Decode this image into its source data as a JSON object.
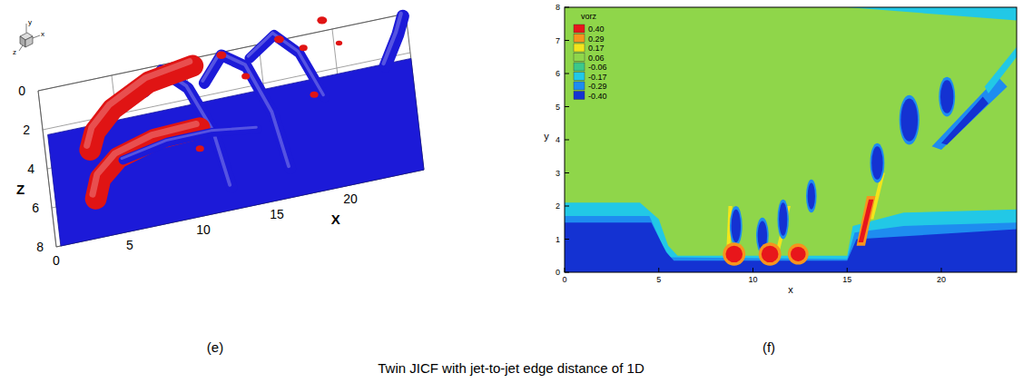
{
  "figure_caption": "Twin JICF with jet-to-jet edge distance of 1D",
  "chart_data": [
    {
      "type": "isosurface",
      "caption": "(e)",
      "x_label": "X",
      "z_label": "Z",
      "axis_icon": [
        "y",
        "x",
        "z"
      ],
      "xlim": [
        0,
        25
      ],
      "zlim": [
        0,
        8
      ],
      "xticks": [
        0,
        5,
        10,
        15,
        20
      ],
      "zticks": [
        0,
        2,
        4,
        6,
        8
      ],
      "surface": {
        "color": "#1c1ad8",
        "points": [
          [
            0.3,
            2.3,
            0
          ],
          [
            25,
            2.3,
            0
          ],
          [
            25,
            8,
            0
          ],
          [
            0.3,
            8,
            0
          ]
        ]
      },
      "tubes": [
        {
          "color": "#1c1ad8",
          "radius": 0.45,
          "points": [
            [
              7,
              1.5,
              0.5
            ],
            [
              8,
              2.5,
              3.5
            ],
            [
              9.5,
              4.5,
              4.8
            ],
            [
              11,
              6.5,
              4
            ],
            [
              12,
              7.5,
              1
            ]
          ]
        },
        {
          "color": "#1c1ad8",
          "radius": 0.45,
          "points": [
            [
              11,
              2,
              1
            ],
            [
              12,
              3,
              4.5
            ],
            [
              13.5,
              4.5,
              5.5
            ],
            [
              15,
              6.5,
              4.5
            ],
            [
              16,
              7.5,
              1.5
            ]
          ]
        },
        {
          "color": "#1c1ad8",
          "radius": 0.4,
          "points": [
            [
              14,
              2.5,
              3
            ],
            [
              15.5,
              3.5,
              6
            ],
            [
              17,
              5,
              6.5
            ],
            [
              18.5,
              6.5,
              5
            ]
          ]
        },
        {
          "color": "#e01414",
          "radius": 0.85,
          "points": [
            [
              3,
              3.5,
              0
            ],
            [
              3.3,
              3.6,
              1.5
            ],
            [
              4.5,
              3.6,
              3
            ],
            [
              7,
              3.4,
              4.2
            ],
            [
              10,
              3.3,
              4.6
            ]
          ]
        },
        {
          "color": "#e01414",
          "radius": 0.85,
          "points": [
            [
              3,
              6,
              0
            ],
            [
              3.3,
              6,
              1.5
            ],
            [
              4.5,
              6.1,
              3
            ],
            [
              7,
              6.2,
              4
            ],
            [
              10,
              6.3,
              4.3
            ]
          ]
        },
        {
          "color": "#1c1ad8",
          "radius": 0.35,
          "points": [
            [
              5,
              5,
              1
            ],
            [
              8,
              5.2,
              2
            ],
            [
              11,
              5.5,
              2.5
            ],
            [
              14,
              6,
              2.8
            ]
          ]
        },
        {
          "color": "#1c1ad8",
          "radius": 0.5,
          "points": [
            [
              23,
              4,
              2.5
            ],
            [
              24,
              3,
              3.2
            ],
            [
              24.5,
              2,
              3
            ]
          ]
        }
      ],
      "blobs": [
        {
          "color": "#e01414",
          "x": 12,
          "z": 3,
          "y": 4.5,
          "r": 0.3
        },
        {
          "color": "#e01414",
          "x": 13.5,
          "z": 4,
          "y": 4,
          "r": 0.25
        },
        {
          "color": "#e01414",
          "x": 16,
          "z": 2.5,
          "y": 4,
          "r": 0.3
        },
        {
          "color": "#e01414",
          "x": 17.5,
          "z": 3.5,
          "y": 4.5,
          "r": 0.25
        },
        {
          "color": "#e01414",
          "x": 19,
          "z": 2,
          "y": 4,
          "r": 0.3
        },
        {
          "color": "#e01414",
          "x": 18,
          "z": 5,
          "y": 3,
          "r": 0.25
        },
        {
          "color": "#e01414",
          "x": 20,
          "z": 3,
          "y": 3.5,
          "r": 0.2
        },
        {
          "color": "#e01414",
          "x": 10,
          "z": 6.5,
          "y": 3,
          "r": 0.25
        }
      ]
    },
    {
      "type": "contour",
      "caption": "(f)",
      "x_label": "x",
      "y_label": "y",
      "legend": "top-left",
      "xlim": [
        0,
        24
      ],
      "ylim": [
        0,
        8
      ],
      "xticks": [
        0,
        5,
        10,
        15,
        20
      ],
      "yticks": [
        0,
        1,
        2,
        3,
        4,
        5,
        6,
        7,
        8
      ],
      "colorbar": {
        "title": "vorz",
        "levels": [
          {
            "value": 0.4,
            "label": "0.40"
          },
          {
            "value": 0.29,
            "label": "0.29"
          },
          {
            "value": 0.17,
            "label": "0.17"
          },
          {
            "value": 0.06,
            "label": "0.06"
          },
          {
            "value": -0.06,
            "label": "-0.06"
          },
          {
            "value": -0.17,
            "label": "-0.17"
          },
          {
            "value": -0.29,
            "label": "-0.29"
          },
          {
            "value": -0.4,
            "label": "-0.40"
          }
        ],
        "colors": [
          "#e8161b",
          "#f7941d",
          "#f2e51c",
          "#8fd64a",
          "#3cc88a",
          "#22c8e6",
          "#1e8cf0",
          "#1432d2"
        ]
      },
      "background_level": 0.06,
      "regions": [
        {
          "level": -0.17,
          "points": [
            [
              0,
              0
            ],
            [
              0,
              2.1
            ],
            [
              4,
              2.1
            ],
            [
              5,
              1.6
            ],
            [
              5.5,
              0.8
            ],
            [
              6,
              0.5
            ],
            [
              15,
              0.5
            ],
            [
              15.3,
              1.4
            ],
            [
              18,
              1.8
            ],
            [
              24,
              1.9
            ],
            [
              24,
              0
            ]
          ]
        },
        {
          "level": -0.29,
          "points": [
            [
              0,
              0
            ],
            [
              0,
              1.7
            ],
            [
              4.5,
              1.7
            ],
            [
              5.2,
              0.8
            ],
            [
              5.6,
              0.45
            ],
            [
              15,
              0.4
            ],
            [
              15.4,
              1.2
            ],
            [
              18,
              1.4
            ],
            [
              24,
              1.5
            ],
            [
              24,
              0
            ]
          ]
        },
        {
          "level": -0.4,
          "points": [
            [
              0,
              0
            ],
            [
              0,
              1.5
            ],
            [
              4.6,
              1.5
            ],
            [
              5.4,
              0.6
            ],
            [
              5.8,
              0.35
            ],
            [
              15,
              0.35
            ],
            [
              15.5,
              1
            ],
            [
              24,
              1.3
            ],
            [
              24,
              0
            ]
          ]
        },
        {
          "level": -0.17,
          "points": [
            [
              15,
              8
            ],
            [
              24,
              7.6
            ],
            [
              24,
              8
            ]
          ]
        },
        {
          "level": -0.29,
          "points": [
            [
              19.5,
              3.8
            ],
            [
              20,
              3.7
            ],
            [
              23.5,
              5.6
            ],
            [
              23,
              5.9
            ]
          ]
        },
        {
          "level": -0.4,
          "points": [
            [
              20,
              3.9
            ],
            [
              20.3,
              3.85
            ],
            [
              22.5,
              5.1
            ],
            [
              22.2,
              5.3
            ]
          ]
        },
        {
          "level": -0.17,
          "points": [
            [
              22.5,
              5.4
            ],
            [
              24,
              6.5
            ],
            [
              24,
              6.8
            ],
            [
              22.3,
              5.6
            ]
          ]
        },
        {
          "level": 0.17,
          "points": [
            [
              8.6,
              0.8
            ],
            [
              8.8,
              0.8
            ],
            [
              8.9,
              2
            ],
            [
              8.7,
              2
            ]
          ]
        },
        {
          "level": 0.17,
          "points": [
            [
              11.2,
              0.6
            ],
            [
              11.4,
              0.6
            ],
            [
              12,
              2
            ],
            [
              11.8,
              2
            ]
          ]
        },
        {
          "level": 0.17,
          "points": [
            [
              16.2,
              1.6
            ],
            [
              16.4,
              1.6
            ],
            [
              17,
              3
            ],
            [
              16.8,
              3
            ]
          ]
        },
        {
          "level": 0.29,
          "points": [
            [
              15.5,
              0.8
            ],
            [
              15.95,
              0.8
            ],
            [
              16.5,
              2.3
            ],
            [
              16.05,
              2.3
            ]
          ]
        },
        {
          "level": 0.4,
          "points": [
            [
              15.6,
              0.9
            ],
            [
              15.85,
              0.9
            ],
            [
              16.4,
              2.2
            ],
            [
              16.15,
              2.2
            ]
          ]
        }
      ],
      "blobs": [
        {
          "level": -0.29,
          "x": 9.1,
          "y": 1.4,
          "rx": 0.33,
          "ry": 0.6
        },
        {
          "level": -0.4,
          "x": 9.1,
          "y": 1.4,
          "rx": 0.25,
          "ry": 0.5
        },
        {
          "level": -0.29,
          "x": 10.5,
          "y": 1.1,
          "rx": 0.33,
          "ry": 0.55
        },
        {
          "level": -0.4,
          "x": 10.5,
          "y": 1.1,
          "rx": 0.25,
          "ry": 0.45
        },
        {
          "level": -0.29,
          "x": 11.6,
          "y": 1.6,
          "rx": 0.3,
          "ry": 0.6
        },
        {
          "level": -0.4,
          "x": 11.6,
          "y": 1.6,
          "rx": 0.22,
          "ry": 0.5
        },
        {
          "level": -0.29,
          "x": 13.1,
          "y": 2.3,
          "rx": 0.28,
          "ry": 0.5
        },
        {
          "level": -0.4,
          "x": 13.1,
          "y": 2.3,
          "rx": 0.2,
          "ry": 0.4
        },
        {
          "level": -0.29,
          "x": 16.6,
          "y": 3.3,
          "rx": 0.38,
          "ry": 0.6
        },
        {
          "level": -0.4,
          "x": 16.6,
          "y": 3.3,
          "rx": 0.3,
          "ry": 0.5
        },
        {
          "level": -0.29,
          "x": 18.3,
          "y": 4.6,
          "rx": 0.53,
          "ry": 0.75
        },
        {
          "level": -0.4,
          "x": 18.3,
          "y": 4.6,
          "rx": 0.45,
          "ry": 0.65
        },
        {
          "level": -0.29,
          "x": 20.3,
          "y": 5.3,
          "rx": 0.43,
          "ry": 0.6
        },
        {
          "level": -0.4,
          "x": 20.3,
          "y": 5.3,
          "rx": 0.35,
          "ry": 0.5
        },
        {
          "level": 0.29,
          "x": 9,
          "y": 0.55,
          "rx": 0.6,
          "ry": 0.35
        },
        {
          "level": 0.4,
          "x": 9,
          "y": 0.55,
          "rx": 0.45,
          "ry": 0.25
        },
        {
          "level": 0.29,
          "x": 10.9,
          "y": 0.55,
          "rx": 0.6,
          "ry": 0.35
        },
        {
          "level": 0.4,
          "x": 10.9,
          "y": 0.55,
          "rx": 0.45,
          "ry": 0.25
        },
        {
          "level": 0.29,
          "x": 12.4,
          "y": 0.55,
          "rx": 0.55,
          "ry": 0.32
        },
        {
          "level": 0.4,
          "x": 12.4,
          "y": 0.55,
          "rx": 0.4,
          "ry": 0.22
        }
      ]
    }
  ]
}
